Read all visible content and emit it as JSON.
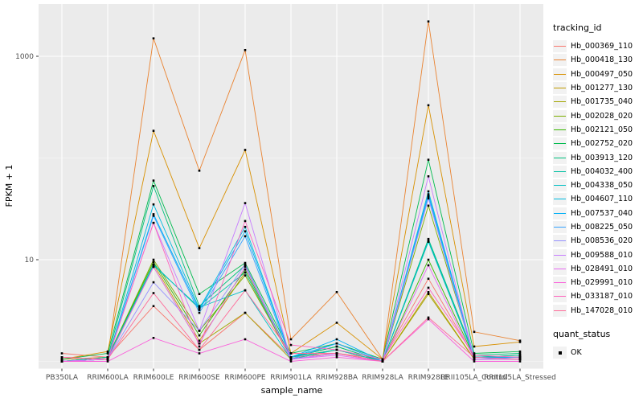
{
  "chart_data": {
    "type": "line",
    "title": "",
    "xlabel": "sample_name",
    "ylabel": "FPKM + 1",
    "y_scale": "log10",
    "y_major_breaks": [
      10,
      1000
    ],
    "y_minor_breaks": [
      1,
      100
    ],
    "ylim_log10": [
      -0.07,
      3.52
    ],
    "grid": true,
    "panel_color": "#EBEBEB",
    "grid_color": "#FFFFFF",
    "point_color": "#000000",
    "categories": [
      "PB350LA",
      "RRIM600LA",
      "RRIM600LE",
      "RRIM600SE",
      "RRIM600PE",
      "RRIM901LA",
      "RRIM928BA",
      "RRIM928LA",
      "RRIM928LE",
      "RRII105LA_Control",
      "RRII105LA_Stressed"
    ],
    "series": [
      {
        "name": "Hb_000369_110",
        "color": "#F8766D",
        "values": [
          1.2,
          1.1,
          3.5,
          1.3,
          3.0,
          1.1,
          1.2,
          1.05,
          6.5,
          1.1,
          1.1
        ]
      },
      {
        "name": "Hb_000418_130",
        "color": "#EA8331",
        "values": [
          1.05,
          1.1,
          1500,
          75,
          1150,
          1.65,
          4.8,
          1.05,
          2200,
          1.95,
          1.6
        ]
      },
      {
        "name": "Hb_000497_050",
        "color": "#D89000",
        "values": [
          1.05,
          1.25,
          185,
          13,
          120,
          1.2,
          2.4,
          1.05,
          330,
          1.4,
          1.55
        ]
      },
      {
        "name": "Hb_001277_130",
        "color": "#C09B00",
        "values": [
          1.0,
          1.05,
          9.0,
          1.6,
          7.5,
          1.05,
          1.3,
          1.0,
          4.8,
          1.05,
          1.05
        ]
      },
      {
        "name": "Hb_001735_040",
        "color": "#A3A500",
        "values": [
          1.0,
          1.05,
          8.5,
          1.5,
          3.0,
          1.05,
          1.2,
          1.0,
          4.6,
          1.05,
          1.05
        ]
      },
      {
        "name": "Hb_002028_020",
        "color": "#7CAE00",
        "values": [
          1.0,
          1.1,
          10,
          2.0,
          7.0,
          1.1,
          1.3,
          1.0,
          34,
          1.1,
          1.1
        ]
      },
      {
        "name": "Hb_002121_050",
        "color": "#39B600",
        "values": [
          1.0,
          1.1,
          9.5,
          1.8,
          8.0,
          1.1,
          1.4,
          1.0,
          10,
          1.1,
          1.15
        ]
      },
      {
        "name": "Hb_002752_020",
        "color": "#00BB4E",
        "values": [
          1.05,
          1.2,
          60,
          4.6,
          9.3,
          1.2,
          1.5,
          1.05,
          96,
          1.2,
          1.25
        ]
      },
      {
        "name": "Hb_003913_120",
        "color": "#00BF7D",
        "values": [
          1.0,
          1.1,
          53,
          3.5,
          8.8,
          1.1,
          1.4,
          1.0,
          16,
          1.15,
          1.2
        ]
      },
      {
        "name": "Hb_004032_400",
        "color": "#00C1A3",
        "values": [
          1.0,
          1.1,
          9.0,
          3.3,
          7.5,
          1.1,
          1.3,
          1.0,
          15.5,
          1.1,
          1.15
        ]
      },
      {
        "name": "Hb_004338_050",
        "color": "#00BFC4",
        "values": [
          1.0,
          1.05,
          8.8,
          3.4,
          5.0,
          1.05,
          1.3,
          1.0,
          15,
          1.1,
          1.1
        ]
      },
      {
        "name": "Hb_004607_110",
        "color": "#00BAE0",
        "values": [
          1.0,
          1.05,
          35,
          3.3,
          21,
          1.1,
          1.5,
          1.0,
          47,
          1.1,
          1.1
        ]
      },
      {
        "name": "Hb_007537_040",
        "color": "#00B0F6",
        "values": [
          1.0,
          1.05,
          28,
          3.2,
          19,
          1.1,
          1.65,
          1.0,
          44,
          1.1,
          1.1
        ]
      },
      {
        "name": "Hb_008225_050",
        "color": "#35A2FF",
        "values": [
          1.0,
          1.05,
          27,
          3.0,
          17,
          1.05,
          1.5,
          1.0,
          42,
          1.05,
          1.1
        ]
      },
      {
        "name": "Hb_008536_020",
        "color": "#9590FF",
        "values": [
          1.0,
          1.05,
          6.0,
          2.0,
          9.0,
          1.05,
          1.2,
          1.0,
          40,
          1.05,
          1.05
        ]
      },
      {
        "name": "Hb_009588_010",
        "color": "#C77CFF",
        "values": [
          1.0,
          1.05,
          23,
          2.0,
          36,
          1.05,
          1.2,
          1.0,
          66,
          1.05,
          1.05
        ]
      },
      {
        "name": "Hb_028491_010",
        "color": "#E76BF3",
        "values": [
          1.0,
          1.05,
          8.5,
          1.5,
          8.5,
          1.05,
          1.15,
          1.0,
          8.8,
          1.05,
          1.05
        ]
      },
      {
        "name": "Hb_029991_010",
        "color": "#FA62DB",
        "values": [
          1.0,
          1.0,
          1.7,
          1.2,
          1.65,
          1.0,
          1.1,
          1.0,
          2.6,
          1.0,
          1.0
        ]
      },
      {
        "name": "Hb_033187_010",
        "color": "#FF62BC",
        "values": [
          1.1,
          1.05,
          23,
          1.4,
          24,
          1.45,
          1.3,
          1.05,
          5.3,
          1.15,
          1.1
        ]
      },
      {
        "name": "Hb_147028_010",
        "color": "#FF6A98",
        "values": [
          1.1,
          1.05,
          4.7,
          1.3,
          5.0,
          1.2,
          1.2,
          1.0,
          2.7,
          1.1,
          1.05
        ]
      }
    ],
    "legend_position": "right"
  },
  "legend": {
    "title": "tracking_id"
  },
  "quant_legend": {
    "title": "quant_status",
    "items": [
      {
        "label": "OK"
      }
    ]
  },
  "axis": {
    "x_title": "sample_name",
    "y_title": "FPKM + 1",
    "y_tick_labels": [
      "1000",
      "10"
    ]
  }
}
